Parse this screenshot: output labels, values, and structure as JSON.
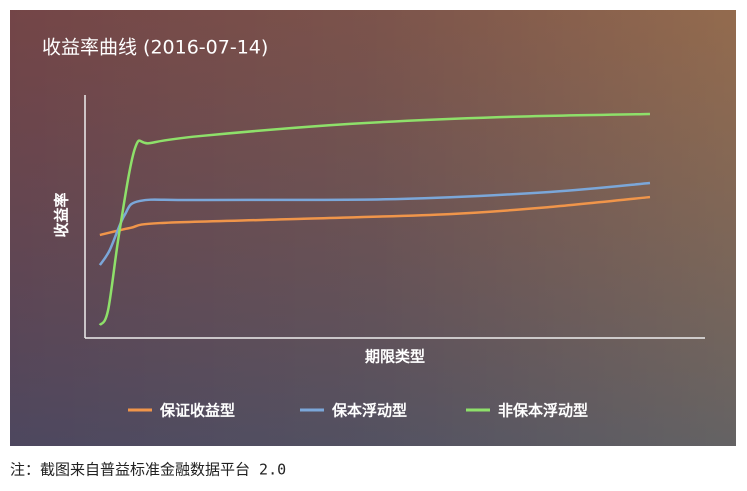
{
  "chart_data": {
    "type": "line",
    "title": "收益率曲线 (2016-07-14)",
    "x_label": "期限类型",
    "y_label": "收益率",
    "xlim": [
      -2.7,
      110
    ],
    "ylim": [
      0,
      100
    ],
    "legend": "bottom",
    "series": [
      {
        "name": "保证收益型",
        "color": "#f0954a",
        "x": [
          0,
          5.5,
          10.9,
          36.4,
          63.6,
          81.8,
          100
        ],
        "values": [
          42.4,
          45.3,
          47.3,
          49.0,
          51.0,
          53.9,
          58.0
        ]
      },
      {
        "name": "保本浮动型",
        "color": "#7ba7d9",
        "x": [
          0,
          1.8,
          4.5,
          7.3,
          18.2,
          54.5,
          81.8,
          100
        ],
        "values": [
          30.0,
          36.2,
          50.6,
          56.4,
          56.8,
          57.2,
          60.1,
          63.8
        ]
      },
      {
        "name": "非保本浮动型",
        "color": "#8ee06a",
        "x": [
          0,
          1.5,
          3.6,
          6.4,
          9.1,
          18.2,
          45.5,
          72.7,
          100
        ],
        "values": [
          5.3,
          11.5,
          44.4,
          78.2,
          80.2,
          83.1,
          88.1,
          90.9,
          92.2
        ]
      }
    ]
  },
  "note": "注：截图来自普益标准金融数据平台 2.0"
}
